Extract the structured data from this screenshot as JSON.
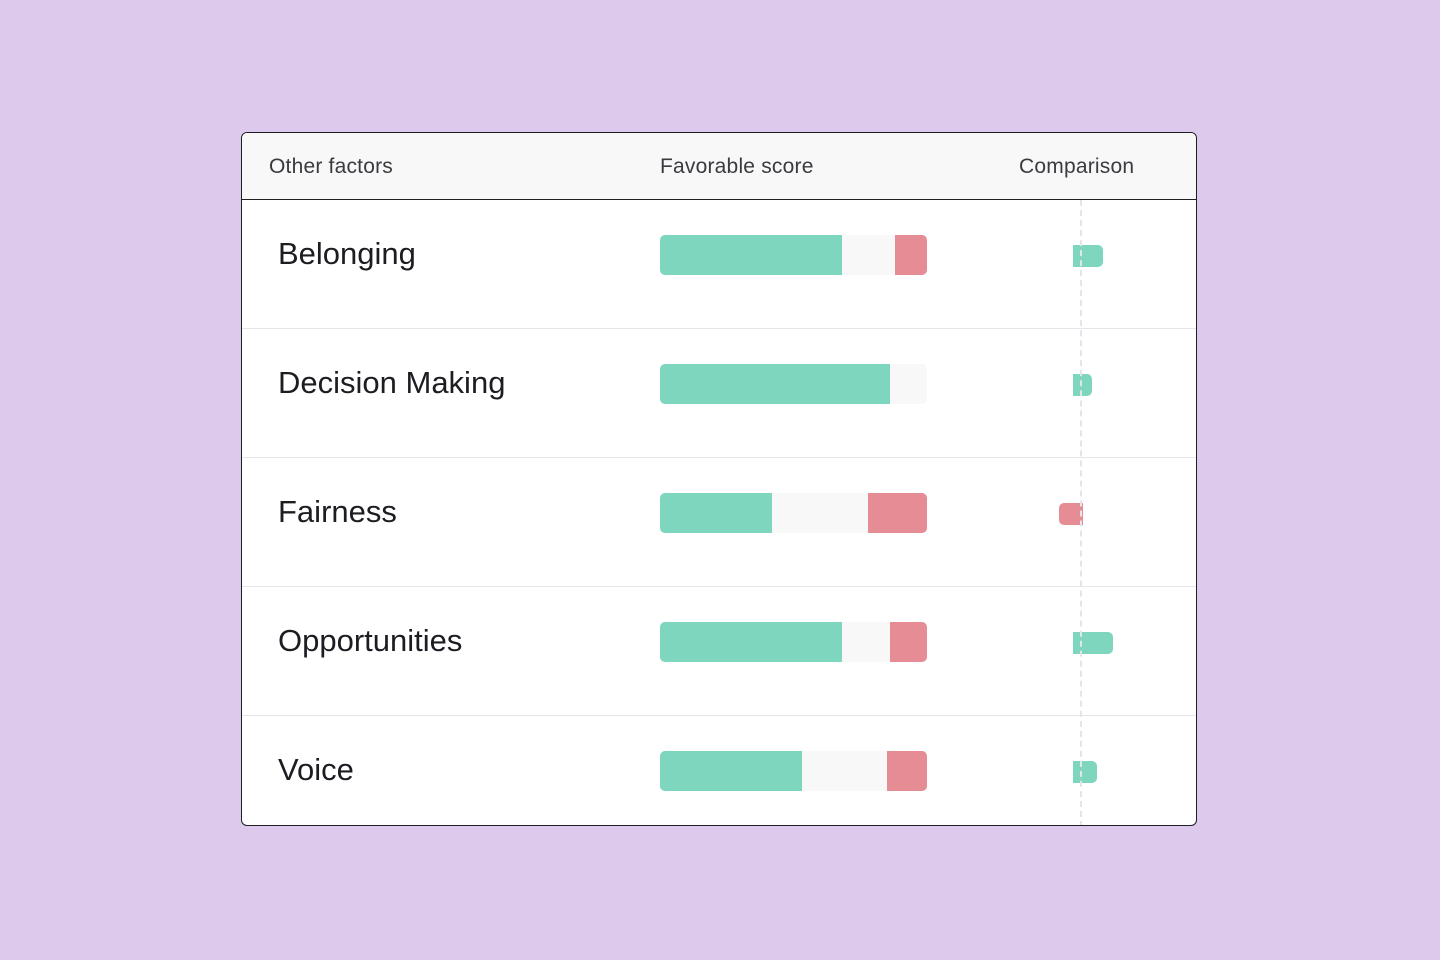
{
  "colors": {
    "background": "#DDC9EC",
    "favorable": "#7ED6BE",
    "neutral": "#F8F8F8",
    "unfavorable": "#E68C94",
    "border": "#1E1E24",
    "header_bg": "#F8F8F8"
  },
  "header": {
    "factor_label": "Other factors",
    "score_label": "Favorable score",
    "comparison_label": "Comparison"
  },
  "rows": [
    {
      "label": "Belonging",
      "favorable": 68,
      "neutral": 20,
      "unfavorable": 12,
      "comparison": 8
    },
    {
      "label": "Decision Making",
      "favorable": 86,
      "neutral": 14,
      "unfavorable": 0,
      "comparison": 4
    },
    {
      "label": "Fairness",
      "favorable": 42,
      "neutral": 36,
      "unfavorable": 22,
      "comparison": -8
    },
    {
      "label": "Opportunities",
      "favorable": 68,
      "neutral": 18,
      "unfavorable": 14,
      "comparison": 12
    },
    {
      "label": "Voice",
      "favorable": 53,
      "neutral": 32,
      "unfavorable": 15,
      "comparison": 6
    }
  ]
}
